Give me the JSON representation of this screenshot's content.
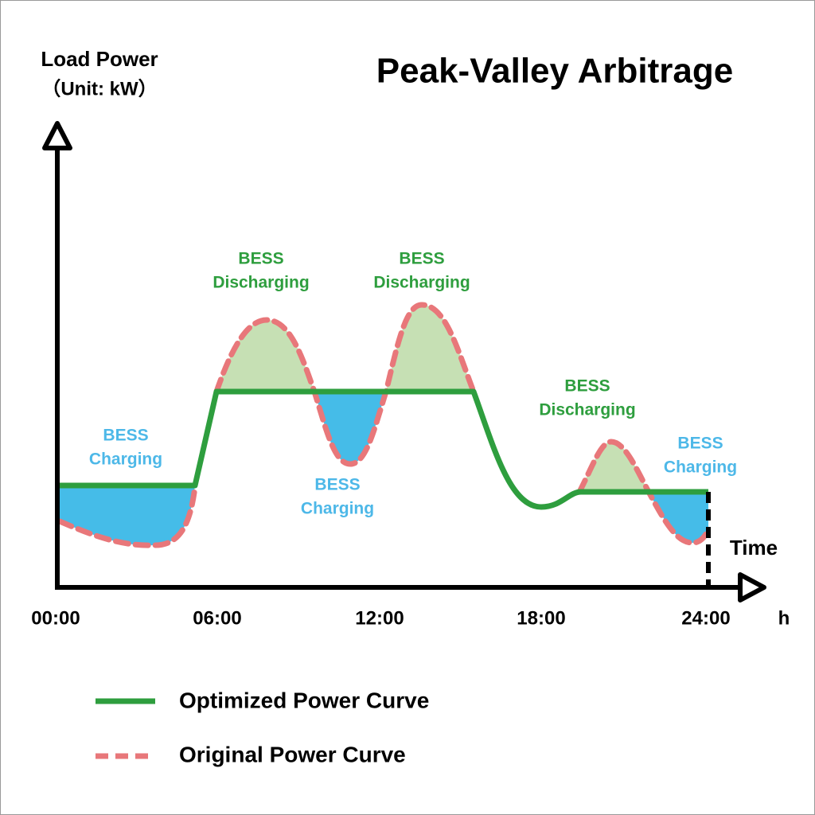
{
  "title": "Peak-Valley Arbitrage",
  "y_axis": {
    "label": "Load Power",
    "unit": "（Unit: kW）"
  },
  "x_axis": {
    "label": "Time",
    "unit": "h",
    "ticks": [
      "00:00",
      "06:00",
      "12:00",
      "18:00",
      "24:00"
    ]
  },
  "annotations": [
    {
      "line1": "BESS",
      "line2": "Charging"
    },
    {
      "line1": "BESS",
      "line2": "Discharging"
    },
    {
      "line1": "BESS",
      "line2": "Charging"
    },
    {
      "line1": "BESS",
      "line2": "Discharging"
    },
    {
      "line1": "BESS",
      "line2": "Discharging"
    },
    {
      "line1": "BESS",
      "line2": "Charging"
    }
  ],
  "legend": [
    "Optimized Power Curve",
    "Original Power Curve"
  ]
}
